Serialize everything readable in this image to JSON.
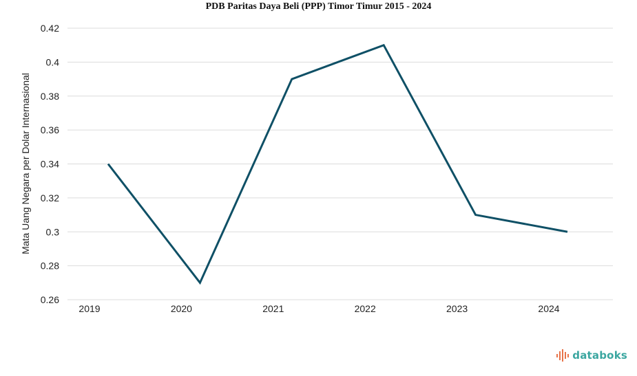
{
  "chart_data": {
    "type": "line",
    "title": "PDB Paritas Daya Beli (PPP) Timor Timur 2015 - 2024",
    "xlabel": "",
    "ylabel": "Mata Uang Negara per Dolar Internasional",
    "categories": [
      "2019",
      "2020",
      "2021",
      "2022",
      "2023",
      "2024"
    ],
    "series": [
      {
        "values": [
          0.34,
          0.27,
          0.39,
          0.41,
          0.31,
          0.3
        ],
        "color": "#0f5066"
      }
    ],
    "ylim": [
      0.26,
      0.42
    ],
    "yticks": [
      "0.26",
      "0.28",
      "0.3",
      "0.32",
      "0.34",
      "0.36",
      "0.38",
      "0.4",
      "0.42"
    ],
    "grid": true,
    "legend": "none"
  },
  "brand": {
    "name": "databoks",
    "color": "#3aa6a0",
    "icon": "databoks-logo-icon"
  }
}
